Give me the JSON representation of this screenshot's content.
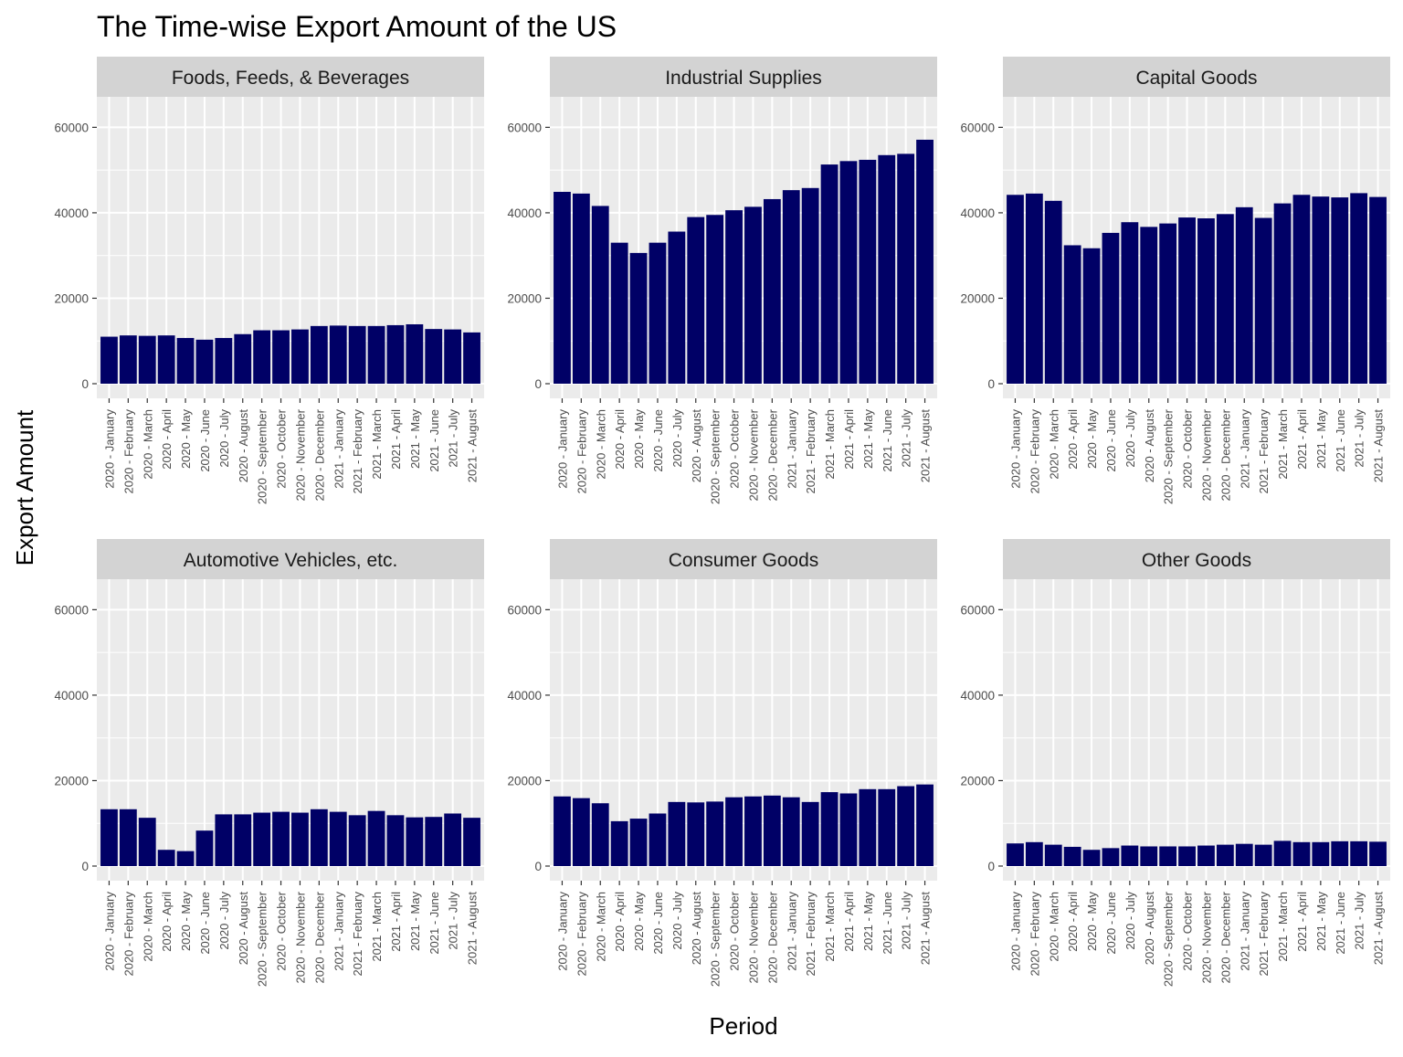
{
  "chart_data": {
    "type": "bar",
    "title": "The Time-wise Export Amount of the US",
    "xlabel": "Period",
    "ylabel": "Export Amount",
    "ylim": [
      0,
      65000
    ],
    "yticks": [
      0,
      20000,
      40000,
      60000
    ],
    "bar_color": "#000066",
    "panel_background": "#ebebeb",
    "strip_background": "#d3d3d3",
    "grid": true,
    "categories": [
      "2020 - January",
      "2020 - February",
      "2020 - March",
      "2020 - April",
      "2020 - May",
      "2020 - June",
      "2020 - July",
      "2020 - August",
      "2020 - September",
      "2020 - October",
      "2020 - November",
      "2020 - December",
      "2021 - January",
      "2021 - February",
      "2021 - March",
      "2021 - April",
      "2021 - May",
      "2021 - June",
      "2021 - July",
      "2021 - August"
    ],
    "series": [
      {
        "name": "Foods, Feeds, & Beverages",
        "values": [
          11000,
          11300,
          11200,
          11300,
          10700,
          10300,
          10700,
          11600,
          12500,
          12500,
          12700,
          13500,
          13600,
          13500,
          13500,
          13700,
          13900,
          12800,
          12700,
          12000
        ]
      },
      {
        "name": "Industrial Supplies",
        "values": [
          44900,
          44500,
          41600,
          33000,
          30600,
          33000,
          35600,
          39000,
          39500,
          40600,
          41400,
          43200,
          45300,
          45800,
          51300,
          52100,
          52400,
          53500,
          53800,
          57100
        ]
      },
      {
        "name": "Capital Goods",
        "values": [
          44200,
          44500,
          42800,
          32400,
          31700,
          35300,
          37800,
          36700,
          37500,
          38900,
          38700,
          39700,
          41300,
          38800,
          42200,
          44200,
          43800,
          43600,
          44600,
          43700
        ]
      },
      {
        "name": "Automotive Vehicles, etc.",
        "values": [
          13300,
          13300,
          11300,
          3800,
          3500,
          8300,
          12100,
          12100,
          12500,
          12700,
          12500,
          13300,
          12700,
          11900,
          12900,
          11900,
          11400,
          11500,
          12300,
          11300
        ]
      },
      {
        "name": "Consumer Goods",
        "values": [
          16300,
          15900,
          14700,
          10500,
          11100,
          12300,
          15000,
          14900,
          15100,
          16100,
          16300,
          16500,
          16100,
          15000,
          17300,
          17000,
          18000,
          18000,
          18700,
          19100
        ]
      },
      {
        "name": "Other Goods",
        "values": [
          5300,
          5600,
          5000,
          4500,
          3800,
          4200,
          4800,
          4600,
          4600,
          4600,
          4800,
          5000,
          5200,
          5000,
          5900,
          5600,
          5600,
          5800,
          5800,
          5700
        ]
      }
    ]
  }
}
